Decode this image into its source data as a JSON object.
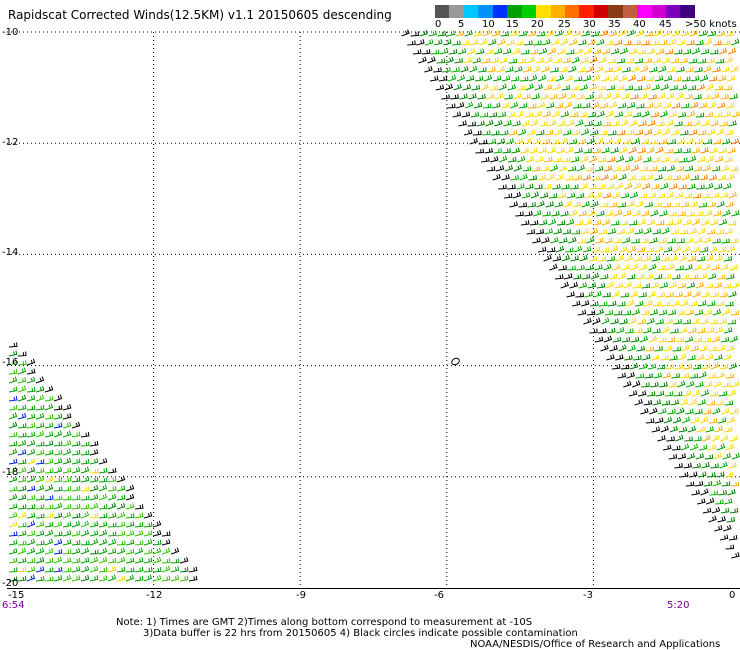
{
  "title": "Rapidscat Corrected Winds(12.5KM) v1.1 20150605 descending",
  "colorbar": {
    "colors": [
      "#555555",
      "#999999",
      "#00c8ff",
      "#0090ff",
      "#0030ff",
      "#00a000",
      "#00d000",
      "#ffe000",
      "#ffb000",
      "#ff7000",
      "#ff2000",
      "#d00000",
      "#8b3a1a",
      "#c06040",
      "#ff00ff",
      "#d000d0",
      "#8000c0",
      "#400080"
    ],
    "labels": [
      "0",
      "5",
      "10",
      "15",
      "20",
      "25",
      "30",
      "35",
      "40",
      "45",
      ">50 knots"
    ]
  },
  "axes": {
    "lat_labels": [
      "-10",
      "-12",
      "-14",
      "-16",
      "-18",
      "-20"
    ],
    "lon_labels": [
      "-12",
      "-9",
      "-6",
      "-3",
      "0"
    ],
    "lon_start_label": "-15"
  },
  "times": {
    "left": "6:54",
    "right": "5:20"
  },
  "notes": {
    "line1": "Note: 1) Times are GMT 2)Times along bottom correspond to measurement at -10S",
    "line2": "3)Data buffer is 22 hrs from 20150605 4) Black circles indicate possible contamination",
    "credit": "NOAA/NESDIS/Office of Research and Applications"
  },
  "map": {
    "lat_range": [
      -20,
      -10
    ],
    "lon_range": [
      -15,
      0
    ],
    "contamination_marker": {
      "lon": -5.8,
      "lat": -16.0
    }
  }
}
